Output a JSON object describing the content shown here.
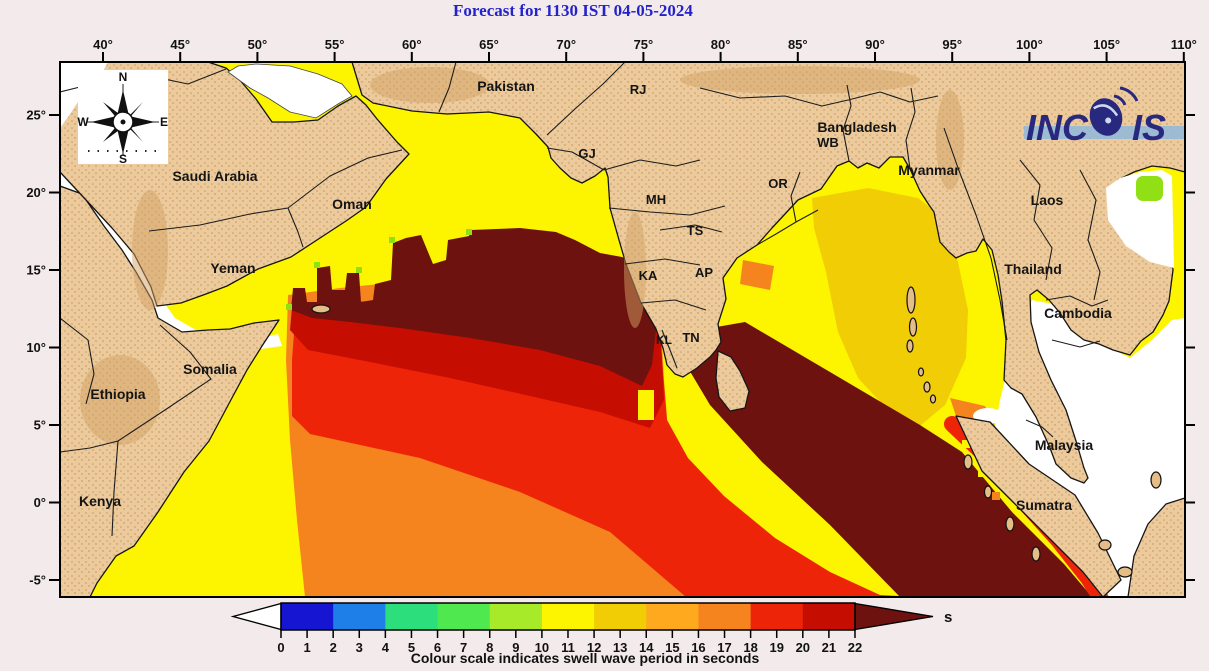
{
  "title": "Forecast for 1130 IST 04-05-2024",
  "axes": {
    "top_labels": [
      "40°",
      "45°",
      "50°",
      "55°",
      "60°",
      "65°",
      "70°",
      "75°",
      "80°",
      "85°",
      "90°",
      "95°",
      "100°",
      "105°",
      "110°"
    ],
    "left_labels": [
      "25°",
      "20°",
      "15°",
      "10°",
      "5°",
      "0°",
      "-5°"
    ]
  },
  "compass": {
    "n": "N",
    "e": "E",
    "s": "S",
    "w": "W"
  },
  "logo": {
    "part1": "INC",
    "part2": "IS"
  },
  "places": [
    {
      "text": "Saudi Arabia"
    },
    {
      "text": "Oman"
    },
    {
      "text": "Yeman"
    },
    {
      "text": "Somalia"
    },
    {
      "text": "Ethiopia"
    },
    {
      "text": "Kenya"
    },
    {
      "text": "Pakistan"
    },
    {
      "text": "RJ"
    },
    {
      "text": "GJ"
    },
    {
      "text": "MH"
    },
    {
      "text": "TS"
    },
    {
      "text": "KA"
    },
    {
      "text": "AP"
    },
    {
      "text": "KL"
    },
    {
      "text": "TN"
    },
    {
      "text": "OR"
    },
    {
      "text": "WB"
    },
    {
      "text": "Bangladesh"
    },
    {
      "text": "Myanmar"
    },
    {
      "text": "Laos"
    },
    {
      "text": "Thailand"
    },
    {
      "text": "Cambodia"
    },
    {
      "text": "Malaysia"
    },
    {
      "text": "Sumatra"
    }
  ],
  "palette": {
    "ocean_yellow": "#fdf500",
    "ocean_gold": "#f0cd04",
    "ocean_orange": "#f5831e",
    "ocean_red": "#ee2409",
    "ocean_darkred": "#c60d02",
    "ocean_maroon": "#6e1210",
    "ocean_green": "#90e015",
    "sea_white": "#ffffff"
  },
  "colorbar": {
    "tick_labels": [
      "0",
      "1",
      "2",
      "3",
      "4",
      "5",
      "6",
      "7",
      "8",
      "9",
      "10",
      "11",
      "12",
      "13",
      "14",
      "15",
      "16",
      "17",
      "18",
      "19",
      "20",
      "21",
      "22"
    ],
    "segment_colors": [
      "#1616d2",
      "#1f7fe8",
      "#2cdf7c",
      "#4fe84f",
      "#a6ea2a",
      "#fdf500",
      "#f0cd04",
      "#ffa91e",
      "#f5831e",
      "#ee2409",
      "#c60d02"
    ],
    "arrow_color": "#6e1210",
    "unit": "s",
    "caption": "Colour scale indicates swell wave period in seconds"
  }
}
